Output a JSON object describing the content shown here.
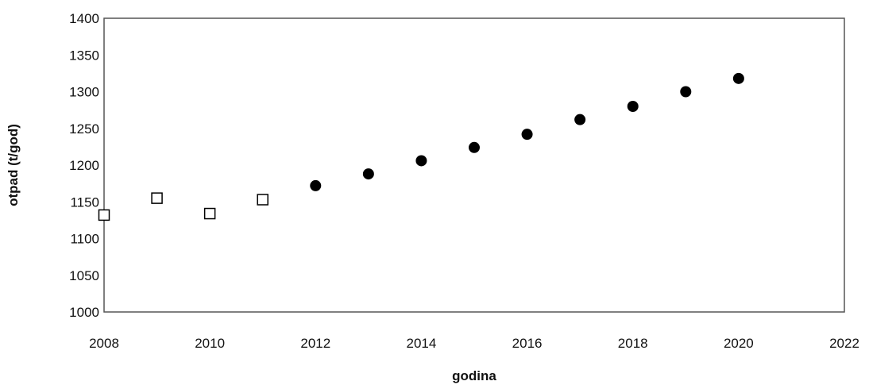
{
  "chart_data": {
    "type": "scatter",
    "title": "",
    "xlabel": "godina",
    "ylabel": "otpad (t/god)",
    "xlim": [
      2008,
      2022
    ],
    "ylim": [
      1000,
      1400
    ],
    "x_ticks": [
      2008,
      2010,
      2012,
      2014,
      2016,
      2018,
      2020,
      2022
    ],
    "y_ticks": [
      1000,
      1050,
      1100,
      1150,
      1200,
      1250,
      1300,
      1350,
      1400
    ],
    "grid": false,
    "legend": "none",
    "series": [
      {
        "marker": "open-square",
        "color": "#000000",
        "points": [
          {
            "x": 2008,
            "y": 1132
          },
          {
            "x": 2009,
            "y": 1155
          },
          {
            "x": 2010,
            "y": 1134
          },
          {
            "x": 2011,
            "y": 1153
          }
        ]
      },
      {
        "marker": "filled-circle",
        "color": "#000000",
        "points": [
          {
            "x": 2012,
            "y": 1172
          },
          {
            "x": 2013,
            "y": 1188
          },
          {
            "x": 2014,
            "y": 1206
          },
          {
            "x": 2015,
            "y": 1224
          },
          {
            "x": 2016,
            "y": 1242
          },
          {
            "x": 2017,
            "y": 1262
          },
          {
            "x": 2018,
            "y": 1280
          },
          {
            "x": 2019,
            "y": 1300
          },
          {
            "x": 2020,
            "y": 1318
          }
        ]
      }
    ]
  }
}
